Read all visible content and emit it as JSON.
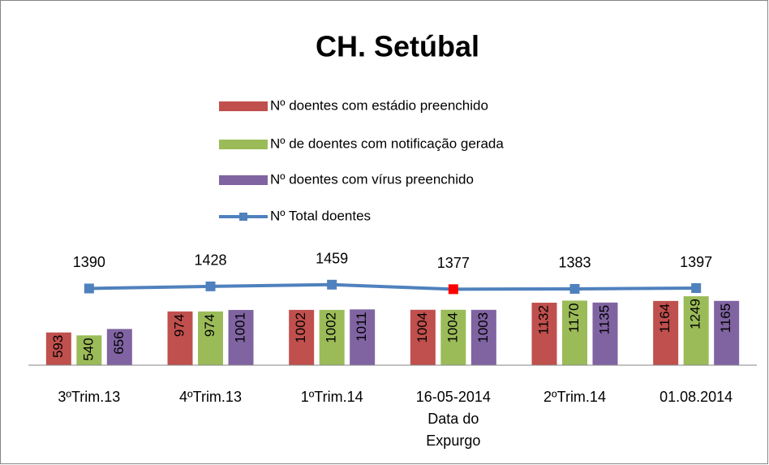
{
  "chart_data": {
    "type": "bar_line",
    "title": "CH. Setúbal",
    "categories": [
      "3ºTrim.13",
      "4ºTrim.13",
      "1ºTrim.14",
      "16-05-2014\nData do\nExpurgo",
      "2ºTrim.14",
      "01.08.2014"
    ],
    "series": [
      {
        "name": "Nº  doentes com estádio preenchido",
        "type": "bar",
        "color": "#c0504d",
        "values": [
          593,
          974,
          1002,
          1004,
          1132,
          1164
        ]
      },
      {
        "name": "Nº de doentes com notificação gerada",
        "type": "bar",
        "color": "#9bbb59",
        "values": [
          540,
          974,
          1002,
          1004,
          1170,
          1249
        ]
      },
      {
        "name": "Nº  doentes com vírus preenchido",
        "type": "bar",
        "color": "#8064a2",
        "values": [
          656,
          1001,
          1011,
          1003,
          1135,
          1165
        ]
      },
      {
        "name": "Nº  Total doentes",
        "type": "line",
        "color": "#4f81bd",
        "marker_colors": [
          "#4f81bd",
          "#4f81bd",
          "#4f81bd",
          "#ff0000",
          "#4f81bd",
          "#4f81bd"
        ],
        "values": [
          1390,
          1428,
          1459,
          1377,
          1383,
          1397
        ]
      }
    ],
    "ylim": [
      0,
      2500
    ]
  }
}
